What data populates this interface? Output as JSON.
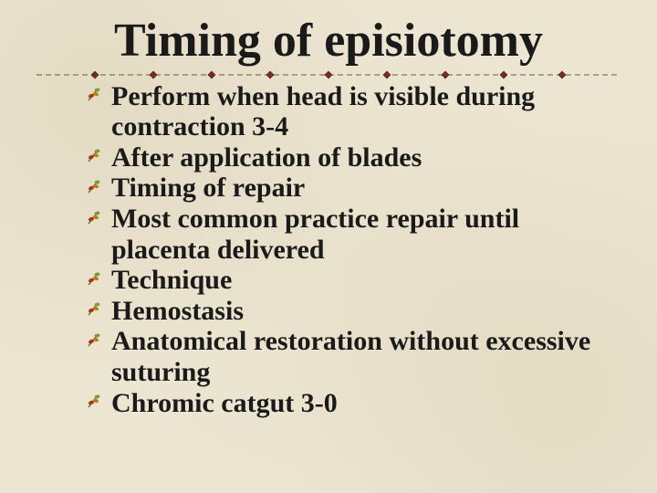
{
  "title": "Timing of episiotomy",
  "title_fontsize": 52,
  "title_color": "#1a1a1a",
  "body_fontsize": 30,
  "body_color": "#1a1a1a",
  "background_color": "#ece5d1",
  "divider": {
    "line_color": "#6b5a3a",
    "diamond_fill": "#7a2e1a",
    "diamond_stroke": "#3a1a0a"
  },
  "bullet_icon": {
    "stem_color": "#5a7a2a",
    "leaf1": "#a03a1a",
    "leaf2": "#c07a1a",
    "leaf3": "#7a9a3a"
  },
  "items": [
    "Perform when head is visible during contraction 3-4",
    "After application of blades",
    "Timing of repair",
    "Most common practice repair until placenta delivered",
    "Technique",
    "Hemostasis",
    "Anatomical restoration without excessive suturing",
    "Chromic catgut  3-0"
  ]
}
